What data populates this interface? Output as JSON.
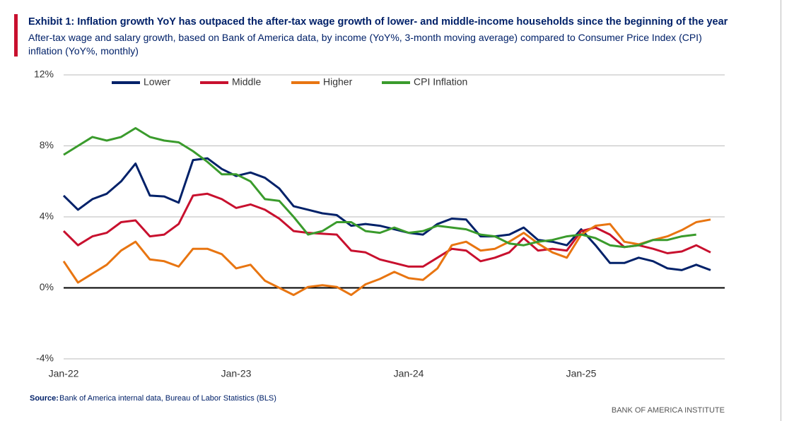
{
  "chart_data": {
    "type": "line",
    "title": "Exhibit 1: Inflation growth YoY has outpaced the after-tax wage growth of lower- and middle-income households since the beginning of the year",
    "subtitle": "After-tax wage and salary growth, based on Bank of America data, by income (YoY%, 3-month moving average) compared to Consumer Price Index (CPI) inflation (YoY%, monthly)",
    "source_label": "Source:",
    "source": "Bank of America internal data, Bureau of Labor Statistics (BLS)",
    "brand": "BANK OF AMERICA INSTITUTE",
    "categories": [
      "Jan-22",
      null,
      null,
      null,
      null,
      null,
      null,
      null,
      null,
      null,
      null,
      null,
      "Jan-23",
      null,
      null,
      null,
      null,
      null,
      null,
      null,
      null,
      null,
      null,
      null,
      "Jan-24",
      null,
      null,
      null,
      null,
      null,
      null,
      null,
      null,
      null,
      null,
      null,
      "Jan-25",
      null,
      null,
      null,
      null,
      null,
      null,
      null,
      null,
      null
    ],
    "ylim": [
      -4,
      12
    ],
    "yticks": [
      {
        "value": -4,
        "label": "-4%"
      },
      {
        "value": 0,
        "label": "0%"
      },
      {
        "value": 4,
        "label": "4%"
      },
      {
        "value": 8,
        "label": "8%"
      },
      {
        "value": 12,
        "label": "12%"
      }
    ],
    "grid": true,
    "series": [
      {
        "name": "Lower",
        "color": "#012169",
        "values": [
          5.2,
          4.4,
          5.0,
          5.3,
          6.0,
          7.0,
          5.2,
          5.15,
          4.8,
          7.2,
          7.3,
          6.7,
          6.3,
          6.5,
          6.2,
          5.6,
          4.6,
          4.4,
          4.2,
          4.1,
          3.5,
          3.6,
          3.5,
          3.3,
          3.1,
          3.0,
          3.6,
          3.9,
          3.85,
          2.9,
          2.9,
          3.0,
          3.4,
          2.7,
          2.6,
          2.4,
          3.3,
          2.4,
          1.4,
          1.4,
          1.7,
          1.5,
          1.1,
          1.0,
          1.3,
          1.0
        ]
      },
      {
        "name": "Middle",
        "color": "#c8102e",
        "values": [
          3.2,
          2.4,
          2.9,
          3.1,
          3.7,
          3.8,
          2.9,
          3.0,
          3.6,
          5.2,
          5.3,
          5.0,
          4.5,
          4.7,
          4.4,
          3.9,
          3.2,
          3.1,
          3.05,
          3.0,
          2.1,
          2.0,
          1.6,
          1.4,
          1.2,
          1.2,
          1.7,
          2.2,
          2.1,
          1.5,
          1.7,
          2.0,
          2.8,
          2.1,
          2.2,
          2.1,
          3.2,
          3.4,
          3.0,
          2.3,
          2.4,
          2.2,
          1.95,
          2.05,
          2.4,
          2.0
        ]
      },
      {
        "name": "Higher",
        "color": "#e87511",
        "values": [
          1.5,
          0.3,
          0.8,
          1.3,
          2.1,
          2.6,
          1.6,
          1.5,
          1.2,
          2.2,
          2.2,
          1.9,
          1.1,
          1.3,
          0.4,
          0.0,
          -0.4,
          0.05,
          0.15,
          0.05,
          -0.4,
          0.2,
          0.5,
          0.9,
          0.55,
          0.45,
          1.1,
          2.4,
          2.6,
          2.1,
          2.2,
          2.6,
          3.1,
          2.5,
          2.0,
          1.7,
          3.0,
          3.5,
          3.6,
          2.6,
          2.45,
          2.7,
          2.9,
          3.25,
          3.7,
          3.85
        ]
      },
      {
        "name": "CPI Inflation",
        "color": "#3a9b2c",
        "values": [
          7.5,
          8.0,
          8.5,
          8.3,
          8.5,
          9.0,
          8.5,
          8.3,
          8.2,
          7.7,
          7.1,
          6.4,
          6.4,
          6.0,
          5.0,
          4.9,
          4.0,
          3.0,
          3.2,
          3.7,
          3.7,
          3.2,
          3.1,
          3.4,
          3.1,
          3.2,
          3.5,
          3.4,
          3.3,
          3.0,
          2.9,
          2.5,
          2.4,
          2.6,
          2.7,
          2.9,
          3.0,
          2.8,
          2.4,
          2.3,
          2.4,
          2.7,
          2.7,
          2.9,
          3.0,
          null
        ]
      }
    ]
  }
}
